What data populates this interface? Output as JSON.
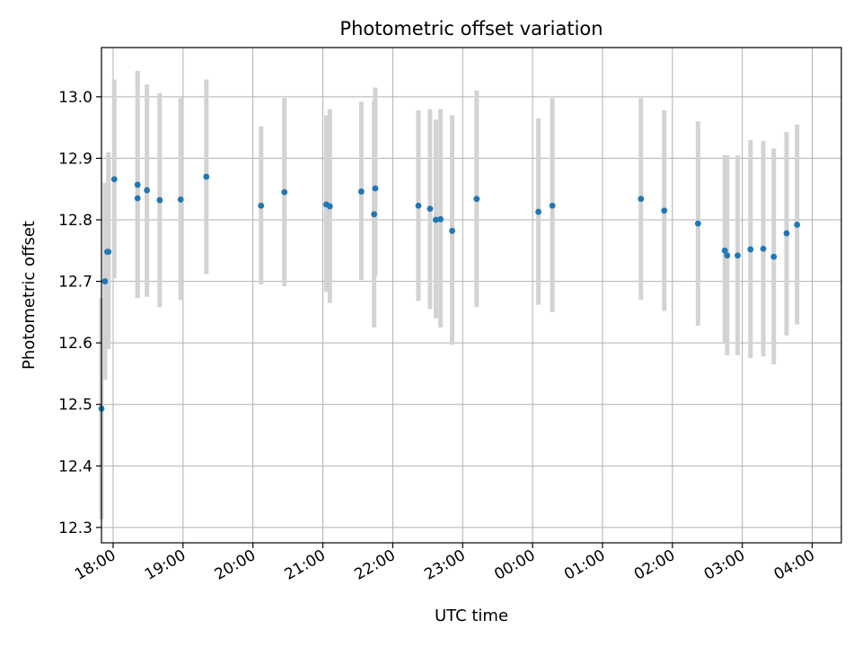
{
  "chart_data": {
    "type": "scatter",
    "title": "Photometric offset variation",
    "xlabel": "UTC time",
    "ylabel": "Photometric offset",
    "x_tick_labels": [
      "18:00",
      "19:00",
      "20:00",
      "21:00",
      "22:00",
      "23:00",
      "00:00",
      "01:00",
      "02:00",
      "03:00",
      "04:00"
    ],
    "y_ticks": [
      12.3,
      12.4,
      12.5,
      12.6,
      12.7,
      12.8,
      12.9,
      13.0
    ],
    "y_tick_labels": [
      "12.3",
      "12.4",
      "12.5",
      "12.6",
      "12.7",
      "12.8",
      "12.9",
      "13.0"
    ],
    "ylim": [
      12.275,
      13.08
    ],
    "xlim": [
      "17:50",
      "04:25"
    ],
    "grid": true,
    "colors": {
      "point": "#1f77b4",
      "errorbar": "#d3d3d3",
      "grid": "#b0b0b0"
    },
    "series": [
      {
        "x": [
          "17:50",
          "17:53",
          "17:55",
          "17:56",
          "18:01",
          "18:21",
          "18:21",
          "18:29",
          "18:40",
          "18:58",
          "19:20",
          "20:07",
          "20:27",
          "21:03",
          "21:06",
          "21:33",
          "21:44",
          "21:45",
          "22:22",
          "22:32",
          "22:37",
          "22:41",
          "22:51",
          "23:12",
          "00:05",
          "00:17",
          "01:33",
          "01:53",
          "02:22",
          "02:45",
          "02:47",
          "02:56",
          "03:07",
          "03:18",
          "03:27",
          "03:38",
          "03:47"
        ],
        "y": [
          12.493,
          12.7,
          12.748,
          12.748,
          12.866,
          12.835,
          12.857,
          12.848,
          12.832,
          12.833,
          12.87,
          12.823,
          12.845,
          12.825,
          12.822,
          12.846,
          12.809,
          12.851,
          12.823,
          12.818,
          12.8,
          12.801,
          12.782,
          12.834,
          12.813,
          12.823,
          12.834,
          12.815,
          12.794,
          12.75,
          12.742,
          12.742,
          12.752,
          12.753,
          12.74,
          12.778,
          12.792
        ],
        "y_low": [
          12.313,
          12.54,
          12.655,
          12.59,
          12.705,
          12.673,
          12.673,
          12.675,
          12.658,
          12.67,
          12.712,
          12.695,
          12.692,
          12.683,
          12.665,
          12.702,
          12.625,
          12.708,
          12.668,
          12.655,
          12.64,
          12.625,
          12.597,
          12.658,
          12.662,
          12.65,
          12.67,
          12.652,
          12.628,
          12.6,
          12.58,
          12.58,
          12.575,
          12.578,
          12.565,
          12.612,
          12.63
        ],
        "y_high": [
          12.673,
          12.86,
          12.86,
          12.91,
          13.028,
          12.988,
          13.042,
          13.02,
          13.006,
          12.998,
          13.028,
          12.952,
          12.998,
          12.97,
          12.98,
          12.992,
          12.993,
          13.015,
          12.978,
          12.98,
          12.963,
          12.98,
          12.97,
          13.01,
          12.965,
          12.998,
          12.998,
          12.978,
          12.96,
          12.905,
          12.905,
          12.905,
          12.93,
          12.928,
          12.916,
          12.943,
          12.955
        ]
      }
    ]
  }
}
